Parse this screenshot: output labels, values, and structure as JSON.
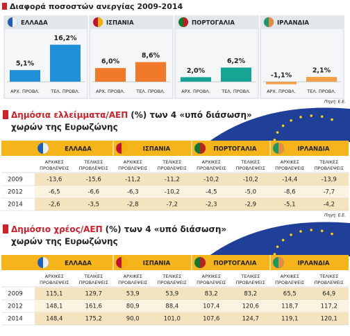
{
  "chart_data": {
    "type": "bar",
    "title": "Διαφορά ποσοστών ανεργίας 2009-2014",
    "categories": [
      "ΕΛΛΑΔΑ",
      "ΙΣΠΑΝΙΑ",
      "ΠΟΡΤΟΓΑΛΙΑ",
      "ΙΡΛΑΝΔΙΑ"
    ],
    "colors": [
      "#1f8fd8",
      "#f07a2a",
      "#16a594",
      "#f5a047"
    ],
    "series": [
      {
        "name": "ΑΡΧ. ΠΡΟΒΛ.",
        "values": [
          5.1,
          6.0,
          2.0,
          -1.1
        ],
        "value_labels": [
          "5,1%",
          "6,0%",
          "2,0%",
          "-1,1%"
        ]
      },
      {
        "name": "ΤΕΛ. ΠΡΟΒΛ.",
        "values": [
          16.2,
          8.6,
          6.2,
          2.1
        ],
        "value_labels": [
          "16,2%",
          "8,6%",
          "6,2%",
          "2,1%"
        ]
      }
    ],
    "source": "Πηγή: Ε.Ε."
  },
  "tables": [
    {
      "title": [
        "Δημόσια ελλείμματα/ΑΕΠ",
        "(%) των 4 «υπό διάσωση»",
        "χωρών της Ευρωζώνης"
      ],
      "countries": [
        "ΕΛΛΑΔΑ",
        "ΙΣΠΑΝΙΑ",
        "ΠΟΡΤΟΓΑΛΙΑ",
        "ΙΡΛΑΝΔΙΑ"
      ],
      "subheaders": [
        [
          "ΑΡΧΙΚΕΣ",
          "ΠΡΟΒΛΕΨΕΙΣ"
        ],
        [
          "ΤΕΛΙΚΕΣ",
          "ΠΡΟΒΛΕΨΕΙΣ"
        ]
      ],
      "rows": [
        {
          "year": "2009",
          "cells": [
            "-13,6",
            "-15,6",
            "-11,2",
            "-11,2",
            "-10,2",
            "-10,2",
            "-14,4",
            "-13,9"
          ]
        },
        {
          "year": "2012",
          "cells": [
            "-6,5",
            "-6,6",
            "-6,3",
            "-10,2",
            "-4,5",
            "-5,0",
            "-8,6",
            "-7,7"
          ]
        },
        {
          "year": "2014",
          "cells": [
            "-2,6",
            "-3,5",
            "-2,8",
            "-7,2",
            "-2,3",
            "-2,9",
            "-5,1",
            "-4,2"
          ]
        }
      ],
      "source": "Πηγή: Ε.Ε."
    },
    {
      "title": [
        "Δημόσιο χρέος/ΑΕΠ",
        "(%) των 4 «υπό διάσωση»",
        "χωρών της Ευρωζώνης"
      ],
      "countries": [
        "ΕΛΛΑΔΑ",
        "ΙΣΠΑΝΙΑ",
        "ΠΟΡΤΟΓΑΛΙΑ",
        "ΙΡΛΑΝΔΙΑ"
      ],
      "subheaders": [
        [
          "ΑΡΧΙΚΕΣ",
          "ΠΡΟΒΛΕΨΕΙΣ"
        ],
        [
          "ΤΕΛΙΚΕΣ",
          "ΠΡΟΒΛΕΨΕΙΣ"
        ]
      ],
      "rows": [
        {
          "year": "2009",
          "cells": [
            "115,1",
            "129,7",
            "53,9",
            "53,9",
            "83,2",
            "83,2",
            "65,5",
            "64,9"
          ]
        },
        {
          "year": "2012",
          "cells": [
            "148,1",
            "161,6",
            "80,9",
            "88,4",
            "107,4",
            "120,6",
            "118,7",
            "117,2"
          ]
        },
        {
          "year": "2014",
          "cells": [
            "148,4",
            "175,2",
            "90,0",
            "101,0",
            "107,6",
            "124,7",
            "119,1",
            "120,1"
          ]
        }
      ]
    }
  ]
}
